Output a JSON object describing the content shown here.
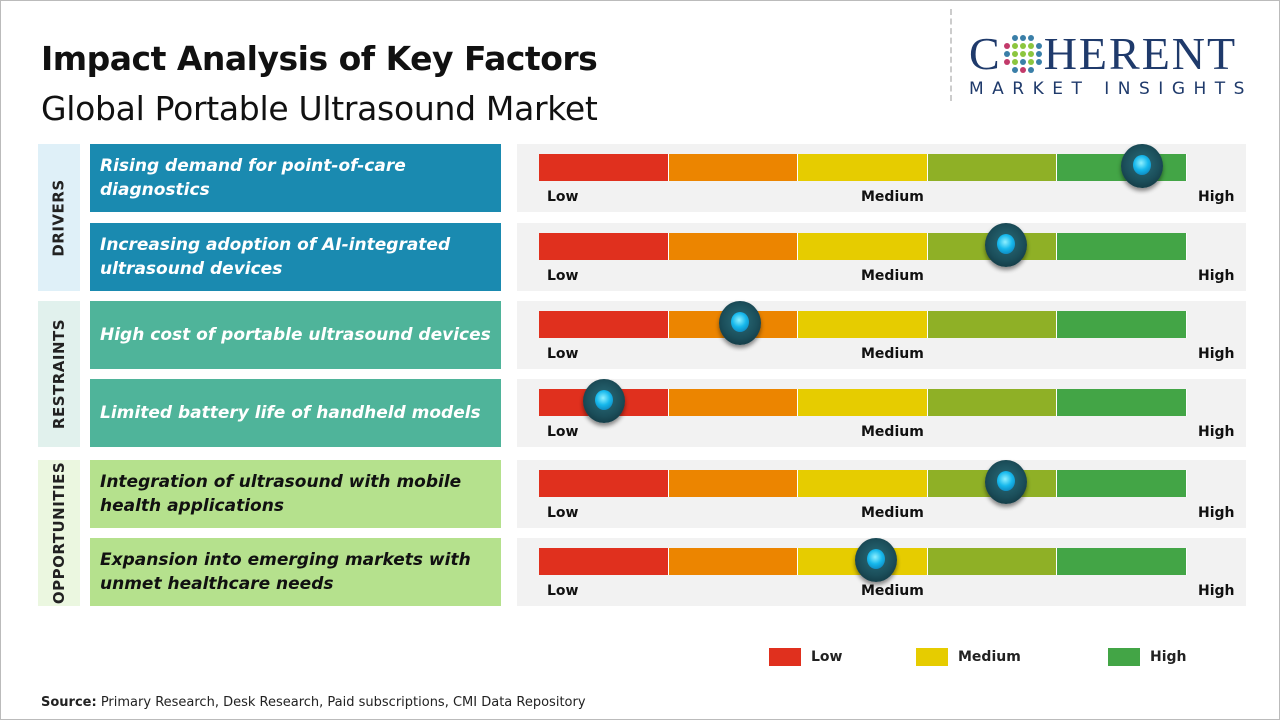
{
  "header": {
    "title": "Impact Analysis of Key Factors",
    "subtitle": "Global Portable Ultrasound Market"
  },
  "logo": {
    "line1_a": "C",
    "line1_b": "HERENT",
    "line2": "MARKET INSIGHTS"
  },
  "colors": {
    "segments": [
      "#e0301e",
      "#ec8500",
      "#e6cc00",
      "#8fb026",
      "#43a546"
    ],
    "drivers_label": "#1a8ab0",
    "drivers_cat": "#dff0f8",
    "restraints_label": "#4fb49a",
    "restraints_cat": "#e1f1ed",
    "opportunities_label": "#b5e18d",
    "opportunities_cat": "#ebf7e0"
  },
  "chart_data": {
    "type": "gauge",
    "scale_labels": [
      "Low",
      "Medium",
      "High"
    ],
    "groups": [
      {
        "name": "DRIVERS",
        "items": [
          {
            "label": "Rising demand for point-of-care diagnostics",
            "impact": 0.93
          },
          {
            "label": "Increasing adoption of AI-integrated ultrasound devices",
            "impact": 0.72
          }
        ]
      },
      {
        "name": "RESTRAINTS",
        "items": [
          {
            "label": "High cost of portable ultrasound devices",
            "impact": 0.31
          },
          {
            "label": "Limited battery life of handheld models",
            "impact": 0.1
          }
        ]
      },
      {
        "name": "OPPORTUNITIES",
        "items": [
          {
            "label": "Integration of ultrasound with mobile health applications",
            "impact": 0.72
          },
          {
            "label": "Expansion into emerging markets with unmet healthcare needs",
            "impact": 0.52
          }
        ]
      }
    ]
  },
  "legend": [
    {
      "label": "Low",
      "color": "#e0301e"
    },
    {
      "label": "Medium",
      "color": "#e6cc00"
    },
    {
      "label": "High",
      "color": "#43a546"
    }
  ],
  "source": {
    "label": "Source:",
    "text": " Primary Research, Desk Research, Paid subscriptions, CMI Data Repository"
  }
}
